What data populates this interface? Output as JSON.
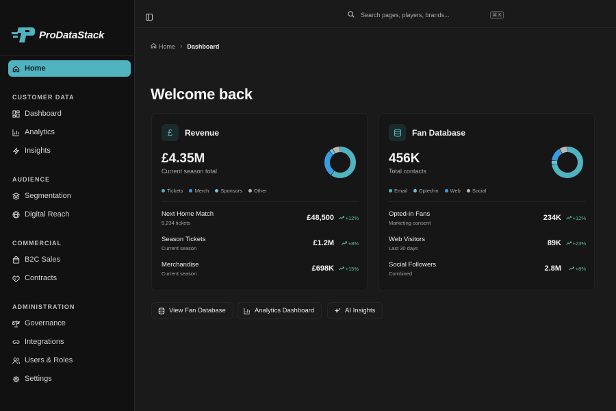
{
  "app": {
    "name": "ProDataStack"
  },
  "colors": {
    "accent": "#4fb3c0",
    "blue": "#3b9be0",
    "gray": "#b8b8b8",
    "positive": "#5fbf8f"
  },
  "sidebar": {
    "home_label": "Home",
    "sections": [
      {
        "title": "CUSTOMER DATA",
        "items": [
          {
            "label": "Dashboard",
            "icon": "dashboard-icon"
          },
          {
            "label": "Analytics",
            "icon": "bar-chart-icon"
          },
          {
            "label": "Insights",
            "icon": "bolt-icon"
          }
        ]
      },
      {
        "title": "AUDIENCE",
        "items": [
          {
            "label": "Segmentation",
            "icon": "layers-icon"
          },
          {
            "label": "Digital Reach",
            "icon": "globe-icon"
          }
        ]
      },
      {
        "title": "COMMERCIAL",
        "items": [
          {
            "label": "B2C Sales",
            "icon": "shopping-bag-icon"
          },
          {
            "label": "Contracts",
            "icon": "handshake-icon"
          }
        ]
      },
      {
        "title": "ADMINISTRATION",
        "items": [
          {
            "label": "Governance",
            "icon": "scale-icon"
          },
          {
            "label": "Integrations",
            "icon": "link-icon"
          },
          {
            "label": "Users & Roles",
            "icon": "users-icon"
          },
          {
            "label": "Settings",
            "icon": "gear-icon"
          }
        ]
      }
    ]
  },
  "topbar": {
    "search_placeholder": "Search pages, players, brands...",
    "shortcut": "⌘ K"
  },
  "breadcrumb": {
    "home": "Home",
    "current": "Dashboard"
  },
  "page": {
    "title": "Welcome back"
  },
  "cards": [
    {
      "title": "Revenue",
      "icon": "pound-icon",
      "icon_glyph": "£",
      "value": "£4.35M",
      "subtitle": "Current season total",
      "legend": [
        {
          "label": "Tickets",
          "color": "#4fb3c0"
        },
        {
          "label": "Merch",
          "color": "#3b9be0"
        },
        {
          "label": "Sponsors",
          "color": "#6fc3d8"
        },
        {
          "label": "Other",
          "color": "#b8b8b8"
        }
      ],
      "donut": [
        {
          "value": 60,
          "color": "#4fb3c0"
        },
        {
          "value": 28,
          "color": "#3b9be0"
        },
        {
          "value": 4,
          "color": "#6fc3d8"
        },
        {
          "value": 8,
          "color": "#b8b8b8"
        }
      ],
      "rows": [
        {
          "label": "Next Home Match",
          "sub": "5,234 tickets",
          "value": "£48,500",
          "trend": "+12%"
        },
        {
          "label": "Season Tickets",
          "sub": "Current season",
          "value": "£1.2M",
          "trend": "+8%"
        },
        {
          "label": "Merchandise",
          "sub": "Current season",
          "value": "£698K",
          "trend": "+15%"
        }
      ]
    },
    {
      "title": "Fan Database",
      "icon": "database-icon",
      "icon_glyph": "",
      "value": "456K",
      "subtitle": "Total contacts",
      "legend": [
        {
          "label": "Email",
          "color": "#4fb3c0"
        },
        {
          "label": "Opted-in",
          "color": "#6fc3d8"
        },
        {
          "label": "Web",
          "color": "#3b9be0"
        },
        {
          "label": "Social",
          "color": "#b8b8b8"
        }
      ],
      "donut": [
        {
          "value": 70,
          "color": "#4fb3c0"
        },
        {
          "value": 4,
          "color": "#6fc3d8"
        },
        {
          "value": 14,
          "color": "#3b9be0"
        },
        {
          "value": 8,
          "color": "#b8b8b8"
        }
      ],
      "rows": [
        {
          "label": "Opted-in Fans",
          "sub": "Marketing consent",
          "value": "234K",
          "trend": "+12%"
        },
        {
          "label": "Web Visitors",
          "sub": "Last 30 days",
          "value": "89K",
          "trend": "+23%"
        },
        {
          "label": "Social Followers",
          "sub": "Combined",
          "value": "2.8M",
          "trend": "+8%"
        }
      ]
    }
  ],
  "actions": [
    {
      "label": "View Fan Database",
      "icon": "database-icon"
    },
    {
      "label": "Analytics Dashboard",
      "icon": "bar-chart-icon"
    },
    {
      "label": "AI Insights",
      "icon": "sparkles-icon"
    }
  ]
}
